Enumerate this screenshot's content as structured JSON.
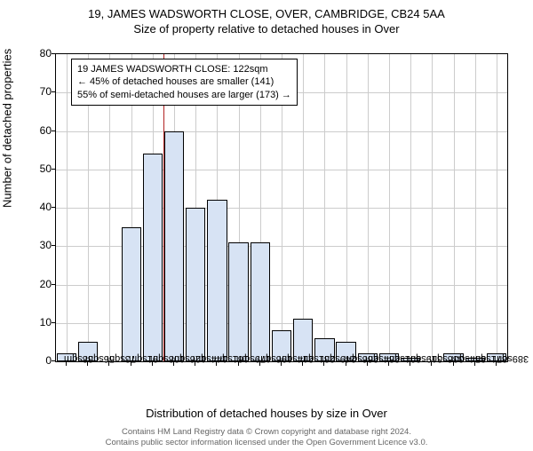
{
  "title": "19, JAMES WADSWORTH CLOSE, OVER, CAMBRIDGE, CB24 5AA",
  "subtitle": "Size of property relative to detached houses in Over",
  "chart": {
    "type": "histogram",
    "ylabel": "Number of detached properties",
    "xlabel": "Distribution of detached houses by size in Over",
    "ylim": [
      0,
      80
    ],
    "ytick_step": 10,
    "bar_fill": "#d7e3f4",
    "bar_stroke": "#000000",
    "grid_color": "#cccccc",
    "background": "#ffffff",
    "marker_color": "#b22222",
    "marker_x_index": 5,
    "categories": [
      "38sqm",
      "56sqm",
      "73sqm",
      "91sqm",
      "108sqm",
      "126sqm",
      "144sqm",
      "161sqm",
      "179sqm",
      "196sqm",
      "214sqm",
      "231sqm",
      "249sqm",
      "266sqm",
      "284sqm",
      "301sqm",
      "319sqm",
      "336sqm",
      "354sqm",
      "371sqm",
      "389sqm"
    ],
    "values": [
      2,
      5,
      0,
      35,
      54,
      60,
      40,
      42,
      31,
      31,
      8,
      11,
      6,
      5,
      2,
      2,
      1,
      0,
      2,
      1,
      2
    ]
  },
  "legend": {
    "line1": "19 JAMES WADSWORTH CLOSE: 122sqm",
    "line2": "← 45% of detached houses are smaller (141)",
    "line3": "55% of semi-detached houses are larger (173) →"
  },
  "footer": {
    "line1": "Contains HM Land Registry data © Crown copyright and database right 2024.",
    "line2": "Contains public sector information licensed under the Open Government Licence v3.0."
  }
}
